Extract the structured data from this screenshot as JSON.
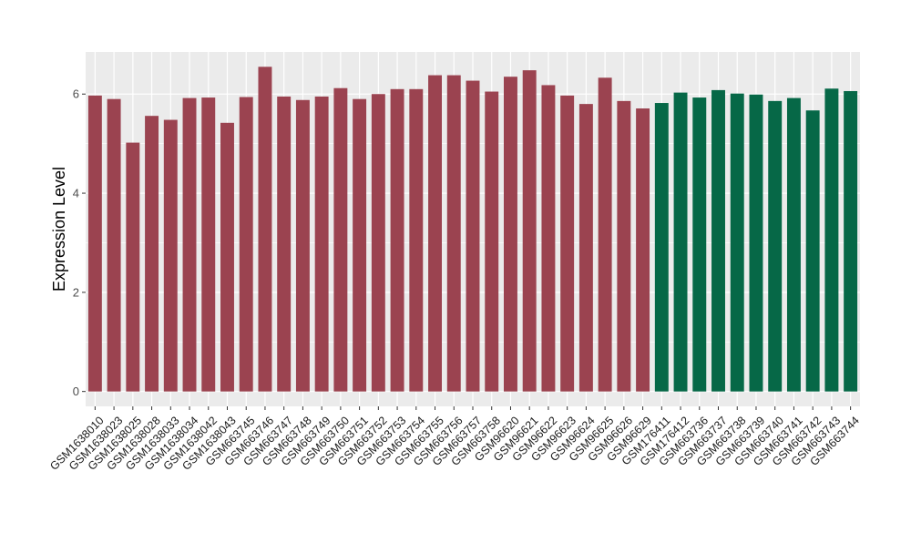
{
  "chart_data": {
    "type": "bar",
    "title": "",
    "xlabel": "",
    "ylabel": "Expression Level",
    "ylim": [
      -0.3,
      6.85
    ],
    "yticks": [
      0,
      2,
      4,
      6
    ],
    "grid": true,
    "legend": "none",
    "colors": {
      "group1": "#9b4350",
      "group2": "#066847",
      "panel_bg": "#ebebeb",
      "grid": "#ffffff"
    },
    "categories": [
      "GSM1638010",
      "GSM1638023",
      "GSM1638025",
      "GSM1638028",
      "GSM1638033",
      "GSM1638034",
      "GSM1638042",
      "GSM1638043",
      "GSM663745",
      "GSM663746",
      "GSM663747",
      "GSM663748",
      "GSM663749",
      "GSM663750",
      "GSM663751",
      "GSM663752",
      "GSM663753",
      "GSM663754",
      "GSM663755",
      "GSM663756",
      "GSM663757",
      "GSM663758",
      "GSM96620",
      "GSM96621",
      "GSM96622",
      "GSM96623",
      "GSM96624",
      "GSM96625",
      "GSM96626",
      "GSM96629",
      "GSM176411",
      "GSM176412",
      "GSM663736",
      "GSM663737",
      "GSM663738",
      "GSM663739",
      "GSM663740",
      "GSM663741",
      "GSM663742",
      "GSM663743",
      "GSM663744"
    ],
    "values": [
      5.97,
      5.9,
      5.02,
      5.56,
      5.48,
      5.92,
      5.93,
      5.42,
      5.94,
      6.55,
      5.95,
      5.88,
      5.95,
      6.12,
      5.9,
      6.0,
      6.1,
      6.1,
      6.38,
      6.38,
      6.27,
      6.05,
      6.35,
      6.48,
      6.18,
      5.97,
      5.8,
      6.33,
      5.86,
      5.71,
      5.82,
      6.03,
      5.93,
      6.08,
      6.01,
      5.99,
      5.86,
      5.92,
      5.67,
      6.11,
      6.06
    ],
    "groups": [
      1,
      1,
      1,
      1,
      1,
      1,
      1,
      1,
      1,
      1,
      1,
      1,
      1,
      1,
      1,
      1,
      1,
      1,
      1,
      1,
      1,
      1,
      1,
      1,
      1,
      1,
      1,
      1,
      1,
      1,
      2,
      2,
      2,
      2,
      2,
      2,
      2,
      2,
      2,
      2,
      2
    ]
  }
}
